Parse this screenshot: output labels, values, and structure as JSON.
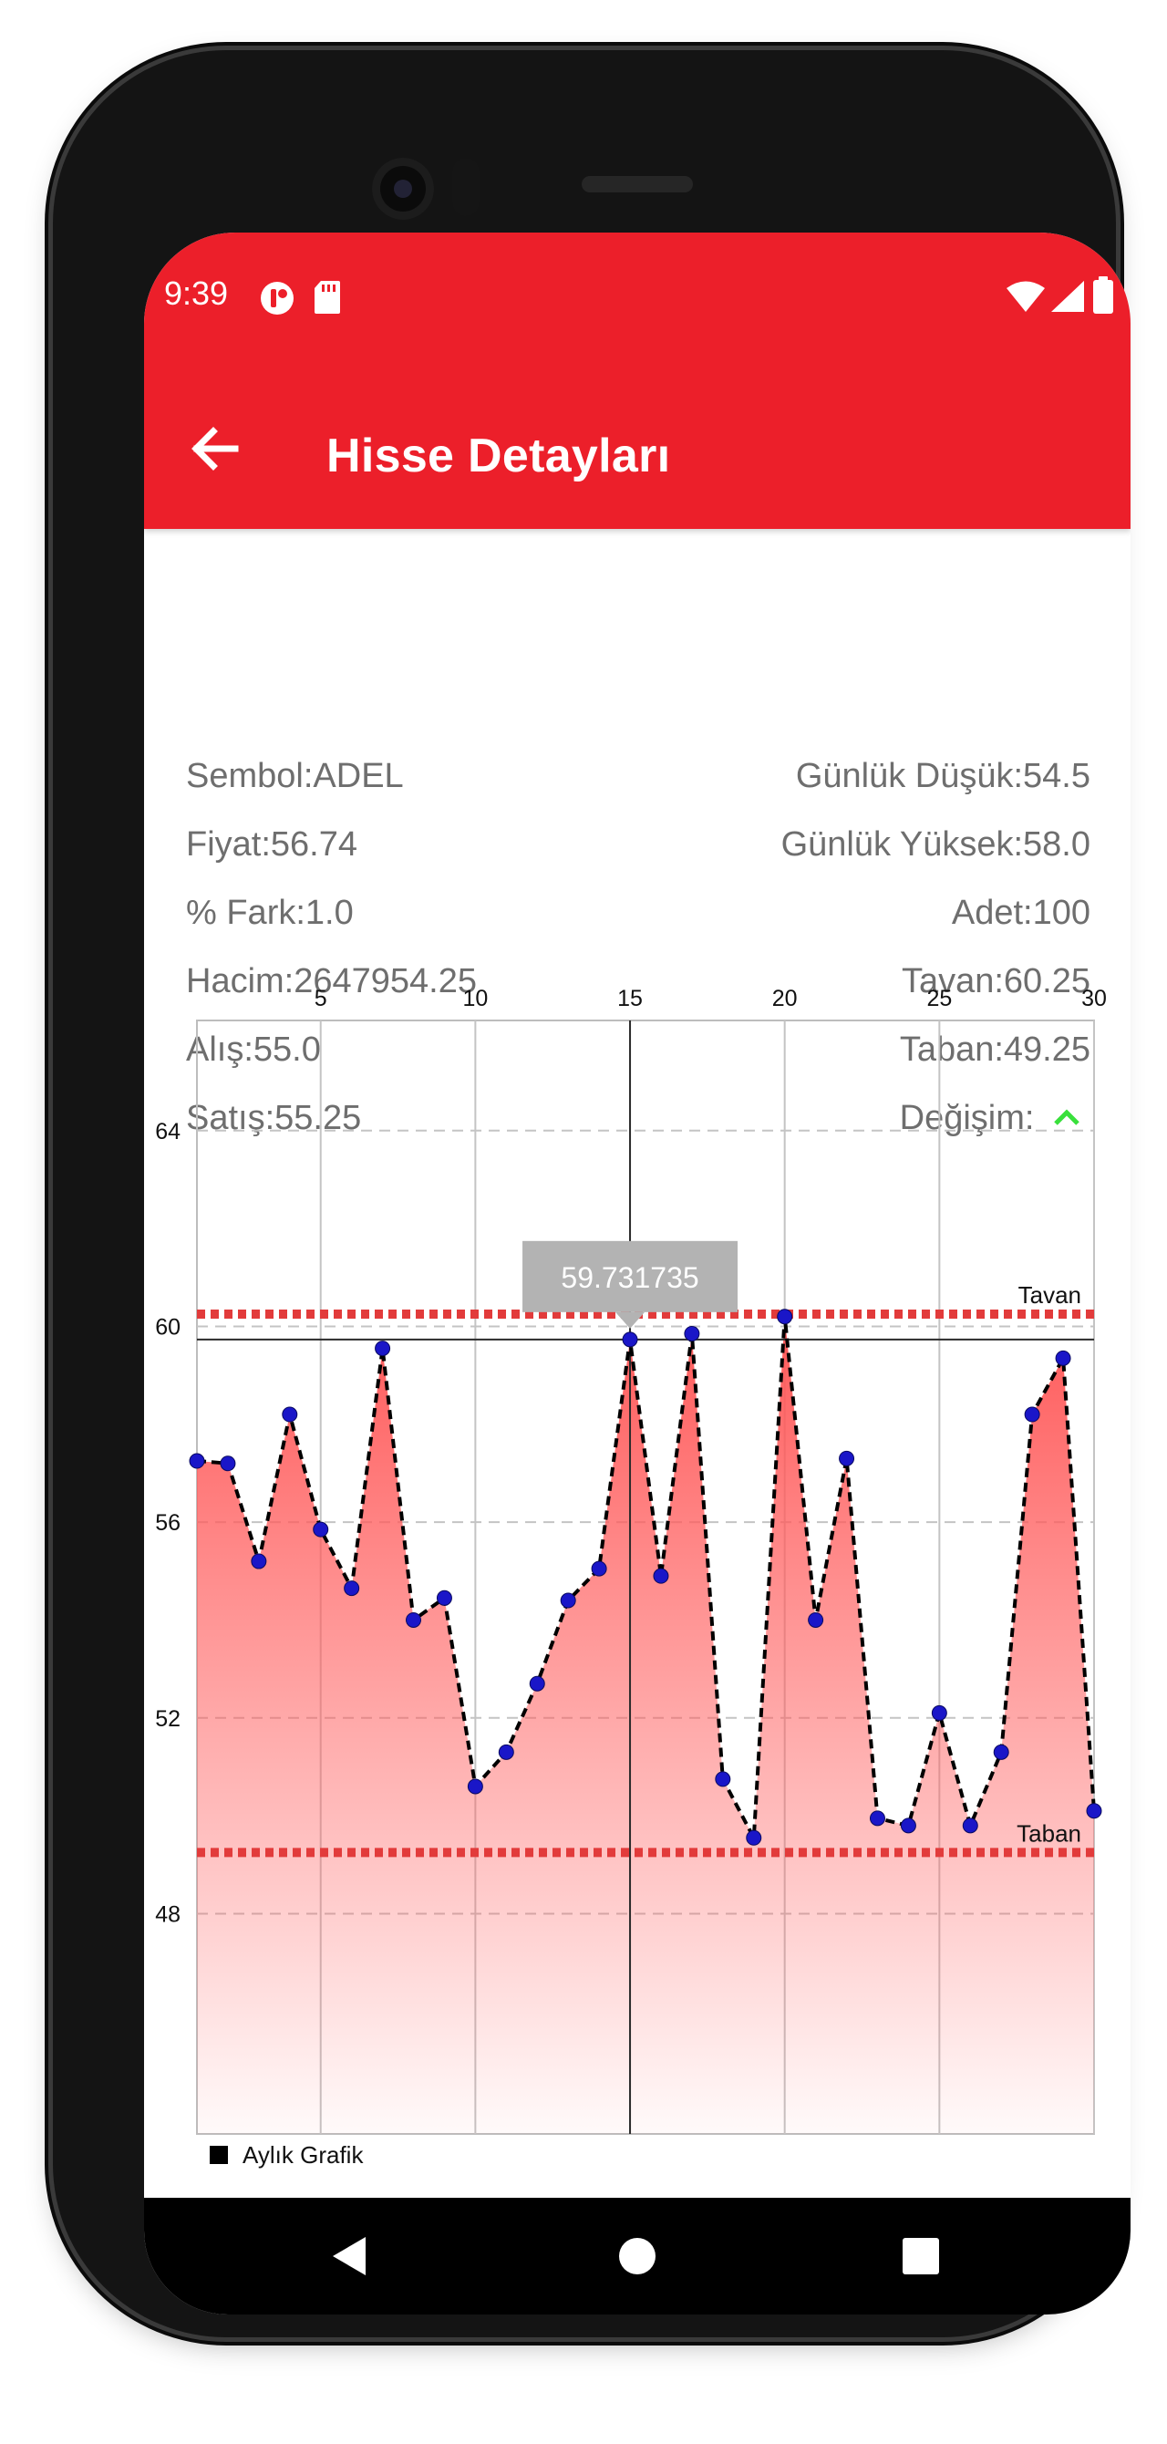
{
  "status_bar": {
    "time": "9:39"
  },
  "app_bar": {
    "title": "Hisse Detayları"
  },
  "info": {
    "left": [
      {
        "label": "Sembol:ADEL"
      },
      {
        "label": "Fiyat:56.74"
      },
      {
        "label": "% Fark:1.0"
      },
      {
        "label": "Hacim:2647954.25"
      },
      {
        "label": "Alış:55.0"
      },
      {
        "label": "Satış:55.25"
      }
    ],
    "right": [
      {
        "label": "Günlük Düşük:54.5"
      },
      {
        "label": "Günlük Yüksek:58.0"
      },
      {
        "label": "Adet:100"
      },
      {
        "label": "Tavan:60.25"
      },
      {
        "label": "Taban:49.25"
      },
      {
        "label": "Değişim:"
      }
    ]
  },
  "colors": {
    "app_bar": "#ec1f2a",
    "change_up": "#39e03c",
    "fill_top": "#ff5a5a",
    "limit_line": "#e23b3b",
    "point": "#1a16c8"
  },
  "change_icon": "chevron-up-icon",
  "chart_data": {
    "type": "area",
    "x": [
      1,
      2,
      3,
      4,
      5,
      6,
      7,
      8,
      9,
      10,
      11,
      12,
      13,
      14,
      15,
      16,
      17,
      18,
      19,
      20,
      21,
      22,
      23,
      24,
      25,
      26,
      27,
      28,
      29,
      30
    ],
    "series": [
      {
        "name": "Aylık Grafik",
        "values": [
          57.25,
          57.2,
          55.2,
          58.2,
          55.85,
          54.65,
          59.55,
          54.0,
          54.45,
          50.6,
          51.3,
          52.7,
          54.4,
          55.05,
          59.731735,
          54.9,
          59.85,
          50.75,
          49.55,
          60.2,
          54.0,
          57.3,
          49.95,
          49.8,
          52.1,
          49.8,
          51.3,
          58.2,
          59.35,
          50.1
        ]
      }
    ],
    "xlim": [
      1,
      30
    ],
    "ylim": [
      43.5,
      66.25
    ],
    "x_ticks": [
      5,
      10,
      15,
      20,
      25,
      30
    ],
    "y_ticks": [
      48,
      52,
      56,
      60,
      64
    ],
    "x_axis_position": "top",
    "grid": true,
    "limit_lines": [
      {
        "label": "Tavan",
        "value": 60.25
      },
      {
        "label": "Taban",
        "value": 49.25
      }
    ],
    "highlight": {
      "x": 15,
      "y": 59.731735,
      "label": "59.731735"
    },
    "legend": {
      "label": "Aylık Grafik",
      "position": "bottom-left"
    }
  }
}
